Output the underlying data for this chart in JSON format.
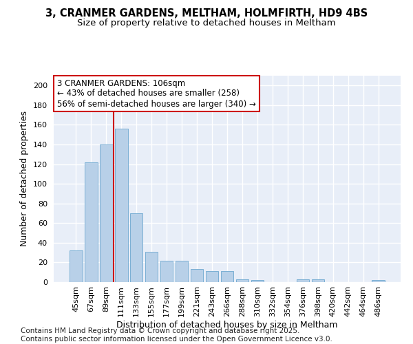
{
  "title": "3, CRANMER GARDENS, MELTHAM, HOLMFIRTH, HD9 4BS",
  "subtitle": "Size of property relative to detached houses in Meltham",
  "xlabel": "Distribution of detached houses by size in Meltham",
  "ylabel": "Number of detached properties",
  "categories": [
    "45sqm",
    "67sqm",
    "89sqm",
    "111sqm",
    "133sqm",
    "155sqm",
    "177sqm",
    "199sqm",
    "221sqm",
    "243sqm",
    "266sqm",
    "288sqm",
    "310sqm",
    "332sqm",
    "354sqm",
    "376sqm",
    "398sqm",
    "420sqm",
    "442sqm",
    "464sqm",
    "486sqm"
  ],
  "values": [
    32,
    122,
    140,
    156,
    70,
    31,
    22,
    22,
    13,
    11,
    11,
    3,
    2,
    0,
    0,
    3,
    3,
    0,
    0,
    0,
    2
  ],
  "bar_color": "#b8d0e8",
  "bar_edge_color": "#7aafd4",
  "vline_pos": 2.5,
  "vline_color": "#cc0000",
  "annotation_line1": "3 CRANMER GARDENS: 106sqm",
  "annotation_line2": "← 43% of detached houses are smaller (258)",
  "annotation_line3": "56% of semi-detached houses are larger (340) →",
  "annotation_box_color": "#cc0000",
  "ylim": [
    0,
    210
  ],
  "yticks": [
    0,
    20,
    40,
    60,
    80,
    100,
    120,
    140,
    160,
    180,
    200
  ],
  "background_color": "#e8eef8",
  "grid_color": "#ffffff",
  "footer_text": "Contains HM Land Registry data © Crown copyright and database right 2025.\nContains public sector information licensed under the Open Government Licence v3.0.",
  "title_fontsize": 10.5,
  "subtitle_fontsize": 9.5,
  "xlabel_fontsize": 9,
  "ylabel_fontsize": 9,
  "annotation_fontsize": 8.5,
  "tick_fontsize": 8,
  "footer_fontsize": 7.5
}
